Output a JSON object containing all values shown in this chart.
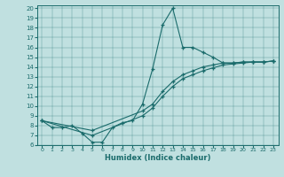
{
  "xlabel": "Humidex (Indice chaleur)",
  "bg_color": "#c0e0e0",
  "line_color": "#1a6b6b",
  "xlim": [
    -0.5,
    23.5
  ],
  "ylim": [
    6,
    20.3
  ],
  "xticks": [
    0,
    1,
    2,
    3,
    4,
    5,
    6,
    7,
    8,
    9,
    10,
    11,
    12,
    13,
    14,
    15,
    16,
    17,
    18,
    19,
    20,
    21,
    22,
    23
  ],
  "yticks": [
    6,
    7,
    8,
    9,
    10,
    11,
    12,
    13,
    14,
    15,
    16,
    17,
    18,
    19,
    20
  ],
  "curve_spike_x": [
    0,
    1,
    2,
    3,
    4,
    5,
    6,
    7,
    8,
    9,
    10,
    11,
    12,
    13,
    14,
    15,
    16,
    17,
    18,
    19,
    20,
    21,
    22,
    23
  ],
  "curve_spike_y": [
    8.5,
    7.8,
    7.8,
    8.0,
    7.2,
    6.3,
    6.3,
    7.8,
    8.3,
    8.5,
    10.2,
    13.8,
    18.3,
    20.0,
    16.0,
    16.0,
    15.5,
    15.0,
    14.4,
    14.4,
    14.5,
    14.5,
    14.5,
    14.6
  ],
  "curve_mid_x": [
    0,
    5,
    10,
    11,
    12,
    13,
    14,
    15,
    16,
    17,
    18,
    19,
    20,
    21,
    22,
    23
  ],
  "curve_mid_y": [
    8.5,
    7.5,
    9.5,
    10.2,
    11.5,
    12.5,
    13.2,
    13.6,
    14.0,
    14.2,
    14.4,
    14.4,
    14.5,
    14.5,
    14.5,
    14.6
  ],
  "curve_low_x": [
    0,
    5,
    10,
    11,
    12,
    13,
    14,
    15,
    16,
    17,
    18,
    19,
    20,
    21,
    22,
    23
  ],
  "curve_low_y": [
    8.5,
    7.0,
    9.0,
    9.8,
    11.0,
    12.0,
    12.8,
    13.2,
    13.6,
    13.9,
    14.2,
    14.3,
    14.4,
    14.5,
    14.5,
    14.6
  ]
}
